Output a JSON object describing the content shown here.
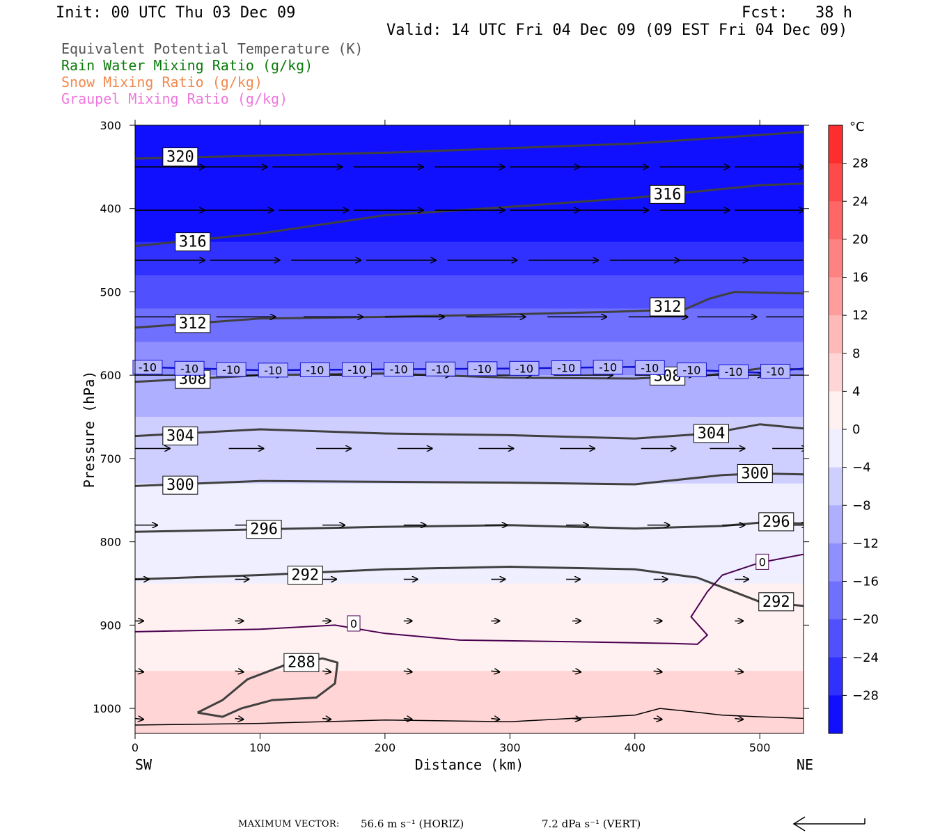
{
  "header": {
    "init": "Init: 00 UTC Thu 03 Dec 09",
    "fcst": "Fcst:   38 h",
    "valid": "Valid: 14 UTC Fri 04 Dec 09 (09 EST Fri 04 Dec 09)"
  },
  "fields": [
    {
      "label": "Equivalent Potential Temperature (K)",
      "color": "#555555"
    },
    {
      "label": "Rain Water Mixing Ratio (g/kg)",
      "color": "#0a7a0a"
    },
    {
      "label": "Snow Mixing Ratio (g/kg)",
      "color": "#f08a50"
    },
    {
      "label": "Graupel Mixing Ratio (g/kg)",
      "color": "#ee77dd"
    }
  ],
  "footer": {
    "max_vector_label": "MAXIMUM VECTOR:",
    "horiz": "56.6 m s⁻¹ (HORIZ)",
    "vert": "7.2 dPa s⁻¹ (VERT)"
  },
  "chart_data": {
    "type": "cross-section",
    "xlabel": "Distance (km)",
    "ylabel": "Pressure (hPa)",
    "x_ticks": [
      0,
      100,
      200,
      300,
      400,
      500
    ],
    "y_ticks": [
      300,
      400,
      500,
      600,
      700,
      800,
      900,
      1000
    ],
    "xlim": [
      0,
      535
    ],
    "ylim": [
      300,
      1030
    ],
    "x_end_labels": {
      "left": "SW",
      "right": "NE"
    },
    "colorbar": {
      "unit": "°C",
      "ticks": [
        28,
        24,
        20,
        16,
        12,
        8,
        4,
        0,
        -4,
        -8,
        -12,
        -16,
        -20,
        -24,
        -28
      ],
      "range": [
        -32,
        32
      ],
      "cold_color": "#0000ff",
      "warm_color": "#ff2020"
    },
    "temperature_profile": [
      [
        300,
        -32
      ],
      [
        400,
        -32
      ],
      [
        450,
        -27
      ],
      [
        500,
        -22
      ],
      [
        550,
        -17
      ],
      [
        600,
        -12
      ],
      [
        650,
        -8
      ],
      [
        700,
        -5
      ],
      [
        760,
        -3
      ],
      [
        800,
        -1
      ],
      [
        850,
        0
      ],
      [
        900,
        1
      ],
      [
        940,
        3
      ],
      [
        980,
        6
      ],
      [
        1030,
        7
      ]
    ],
    "theta_e_contours": [
      {
        "value": 320,
        "points": [
          [
            0,
            340
          ],
          [
            200,
            333
          ],
          [
            400,
            322
          ],
          [
            535,
            308
          ]
        ],
        "label_at": [
          25,
          338
        ]
      },
      {
        "value": 316,
        "points": [
          [
            0,
            445
          ],
          [
            100,
            430
          ],
          [
            200,
            408
          ],
          [
            300,
            398
          ],
          [
            400,
            387
          ],
          [
            500,
            372
          ],
          [
            535,
            370
          ]
        ],
        "label_at": [
          35,
          440
        ]
      },
      {
        "value": 316,
        "points": [],
        "label_at": [
          415,
          383
        ]
      },
      {
        "value": 312,
        "points": [
          [
            0,
            543
          ],
          [
            100,
            532
          ],
          [
            200,
            530
          ],
          [
            300,
            527
          ],
          [
            380,
            524
          ],
          [
            440,
            521
          ],
          [
            460,
            508
          ],
          [
            480,
            500
          ],
          [
            535,
            502
          ]
        ],
        "label_at": [
          35,
          538
        ]
      },
      {
        "value": 312,
        "points": [],
        "label_at": [
          415,
          518
        ]
      },
      {
        "value": 308,
        "points": [
          [
            0,
            608
          ],
          [
            100,
            600
          ],
          [
            200,
            598
          ],
          [
            300,
            603
          ],
          [
            400,
            604
          ],
          [
            460,
            600
          ],
          [
            500,
            592
          ],
          [
            535,
            593
          ]
        ],
        "label_at": [
          35,
          605
        ]
      },
      {
        "value": 308,
        "points": [],
        "label_at": [
          415,
          601
        ]
      },
      {
        "value": 304,
        "points": [
          [
            0,
            673
          ],
          [
            100,
            665
          ],
          [
            200,
            670
          ],
          [
            300,
            672
          ],
          [
            400,
            676
          ],
          [
            460,
            670
          ],
          [
            500,
            659
          ],
          [
            535,
            664
          ]
        ],
        "label_at": [
          25,
          673
        ]
      },
      {
        "value": 304,
        "points": [],
        "label_at": [
          450,
          670
        ]
      },
      {
        "value": 300,
        "points": [
          [
            0,
            733
          ],
          [
            100,
            727
          ],
          [
            200,
            728
          ],
          [
            300,
            729
          ],
          [
            400,
            731
          ],
          [
            470,
            720
          ],
          [
            500,
            718
          ],
          [
            535,
            719
          ]
        ],
        "label_at": [
          25,
          732
        ]
      },
      {
        "value": 300,
        "points": [],
        "label_at": [
          485,
          718
        ]
      },
      {
        "value": 296,
        "points": [
          [
            0,
            788
          ],
          [
            100,
            785
          ],
          [
            200,
            782
          ],
          [
            300,
            780
          ],
          [
            400,
            784
          ],
          [
            470,
            781
          ],
          [
            500,
            777
          ],
          [
            535,
            778
          ]
        ],
        "label_at": [
          92,
          785
        ]
      },
      {
        "value": 296,
        "points": [],
        "label_at": [
          502,
          776
        ]
      },
      {
        "value": 292,
        "points": [
          [
            0,
            845
          ],
          [
            100,
            840
          ],
          [
            200,
            833
          ],
          [
            300,
            830
          ],
          [
            400,
            833
          ],
          [
            450,
            843
          ],
          [
            500,
            872
          ],
          [
            535,
            877
          ]
        ],
        "label_at": [
          125,
          840
        ]
      },
      {
        "value": 292,
        "points": [],
        "label_at": [
          502,
          872
        ]
      },
      {
        "value": 288,
        "points": [
          [
            50,
            1005
          ],
          [
            70,
            990
          ],
          [
            90,
            965
          ],
          [
            120,
            948
          ],
          [
            150,
            940
          ],
          [
            162,
            945
          ],
          [
            160,
            970
          ],
          [
            145,
            987
          ],
          [
            110,
            990
          ],
          [
            85,
            1000
          ],
          [
            70,
            1010
          ],
          [
            50,
            1005
          ]
        ],
        "label_at": [
          122,
          945
        ]
      }
    ],
    "isotherm_minus10": {
      "value": -10,
      "points": [
        [
          0,
          590
        ],
        [
          100,
          594
        ],
        [
          200,
          593
        ],
        [
          300,
          592
        ],
        [
          400,
          590
        ],
        [
          450,
          594
        ],
        [
          500,
          597
        ],
        [
          535,
          592
        ]
      ]
    },
    "isotherm_zero": {
      "value": 0,
      "points": [
        [
          0,
          908
        ],
        [
          100,
          905
        ],
        [
          160,
          900
        ],
        [
          200,
          910
        ],
        [
          260,
          918
        ],
        [
          350,
          920
        ],
        [
          430,
          922
        ],
        [
          450,
          923
        ],
        [
          458,
          912
        ],
        [
          445,
          890
        ],
        [
          458,
          860
        ],
        [
          470,
          840
        ],
        [
          500,
          825
        ],
        [
          535,
          815
        ]
      ],
      "labels_at": [
        [
          175,
          898
        ],
        [
          502,
          824
        ]
      ]
    },
    "terrain_line": [
      [
        0,
        1020
      ],
      [
        100,
        1018
      ],
      [
        200,
        1014
      ],
      [
        300,
        1016
      ],
      [
        350,
        1012
      ],
      [
        400,
        1008
      ],
      [
        420,
        1000
      ],
      [
        440,
        1003
      ],
      [
        470,
        1008
      ],
      [
        500,
        1010
      ],
      [
        535,
        1012
      ]
    ],
    "wind_vectors": {
      "max_horiz": 56.6,
      "max_vert": 7.2,
      "rows": [
        {
          "p": 350,
          "x": [
            0,
            50,
            110,
            175,
            240,
            300,
            355,
            420,
            480,
            535
          ]
        },
        {
          "p": 402,
          "x": [
            0,
            55,
            115,
            175,
            240,
            300,
            355,
            420,
            480,
            535
          ]
        },
        {
          "p": 462,
          "x": [
            0,
            60,
            125,
            185,
            250,
            315,
            380,
            435,
            490,
            535
          ]
        },
        {
          "p": 530,
          "x": [
            0,
            65,
            135,
            200,
            265,
            330,
            395,
            450,
            505,
            535
          ]
        },
        {
          "p": 600,
          "x": [
            0,
            70,
            140,
            205,
            270,
            335,
            400,
            455,
            510,
            535
          ]
        },
        {
          "p": 688,
          "x": [
            0,
            75,
            145,
            210,
            275,
            340,
            405,
            460,
            510,
            535
          ]
        },
        {
          "p": 780,
          "x": [
            0,
            80,
            150,
            215,
            280,
            345,
            410,
            470,
            520,
            535
          ]
        },
        {
          "p": 845,
          "x": [
            0,
            80,
            150,
            215,
            285,
            345,
            415,
            480,
            535
          ]
        },
        {
          "p": 895,
          "x": [
            0,
            80,
            150,
            215,
            285,
            350,
            415,
            480,
            535
          ]
        },
        {
          "p": 955,
          "x": [
            0,
            80,
            150,
            215,
            285,
            350,
            415,
            480,
            535
          ]
        },
        {
          "p": 1012,
          "x": [
            0,
            80,
            150,
            215,
            285,
            350,
            415,
            480,
            535
          ]
        }
      ]
    }
  }
}
